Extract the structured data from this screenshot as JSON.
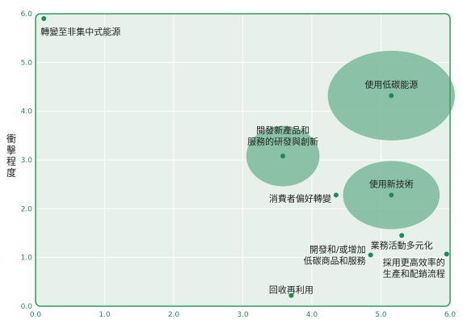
{
  "chart_data": {
    "type": "scatter",
    "title": "",
    "xlabel": "",
    "ylabel": "衝擊程度",
    "xlim": [
      0,
      6
    ],
    "ylim": [
      0,
      6
    ],
    "xticks": [
      "0.0",
      "1.0",
      "2.0",
      "3.0",
      "4.0",
      "5.0",
      "6.0"
    ],
    "yticks": [
      "0.0",
      "1.0",
      "2.0",
      "3.0",
      "4.0",
      "5.0",
      "6.0"
    ],
    "grid": true,
    "colors": {
      "frame": "#2e9e5b",
      "point": "#1f8a55",
      "bubble": "#7ab89a",
      "grid": "#ffffff",
      "background": "#e8f0eb"
    },
    "points": [
      {
        "x": 0.12,
        "y": 5.9,
        "label": [
          "轉變至非集中式能源"
        ],
        "anchor": "start",
        "dx": -4,
        "dy": 16
      },
      {
        "x": 3.58,
        "y": 3.08,
        "label": [
          "開發新產品和",
          "服務的研發與創新"
        ],
        "anchor": "middle",
        "dx": 0,
        "dy": -25,
        "bubble": {
          "rx": 0.53,
          "ry": 0.62
        }
      },
      {
        "x": 5.15,
        "y": 4.32,
        "label": [
          "使用低碳能源"
        ],
        "anchor": "middle",
        "dx": 0,
        "dy": -14,
        "bubble": {
          "rx": 0.92,
          "ry": 0.92
        }
      },
      {
        "x": 5.15,
        "y": 2.28,
        "label": [
          "使用新技術"
        ],
        "anchor": "middle",
        "dx": 0,
        "dy": -14,
        "bubble": {
          "rx": 0.7,
          "ry": 0.7
        }
      },
      {
        "x": 4.35,
        "y": 2.28,
        "label": [
          "消費者偏好轉變"
        ],
        "anchor": "end",
        "dx": -6,
        "dy": 4
      },
      {
        "x": 5.3,
        "y": 1.45,
        "label": [
          "業務活動多元化"
        ],
        "anchor": "middle",
        "dx": 0,
        "dy": 12
      },
      {
        "x": 4.85,
        "y": 1.05,
        "label": [
          "開發和/或增加",
          "低碳商品和服務"
        ],
        "anchor": "end",
        "dx": -6,
        "dy": 0
      },
      {
        "x": 5.95,
        "y": 1.07,
        "label": [
          "採用更高效率的",
          "生產和配銷流程"
        ],
        "anchor": "end",
        "dx": -2,
        "dy": 17
      },
      {
        "x": 3.7,
        "y": 0.22,
        "label": [
          "回收再利用"
        ],
        "anchor": "middle",
        "dx": 0,
        "dy": -7
      }
    ]
  }
}
